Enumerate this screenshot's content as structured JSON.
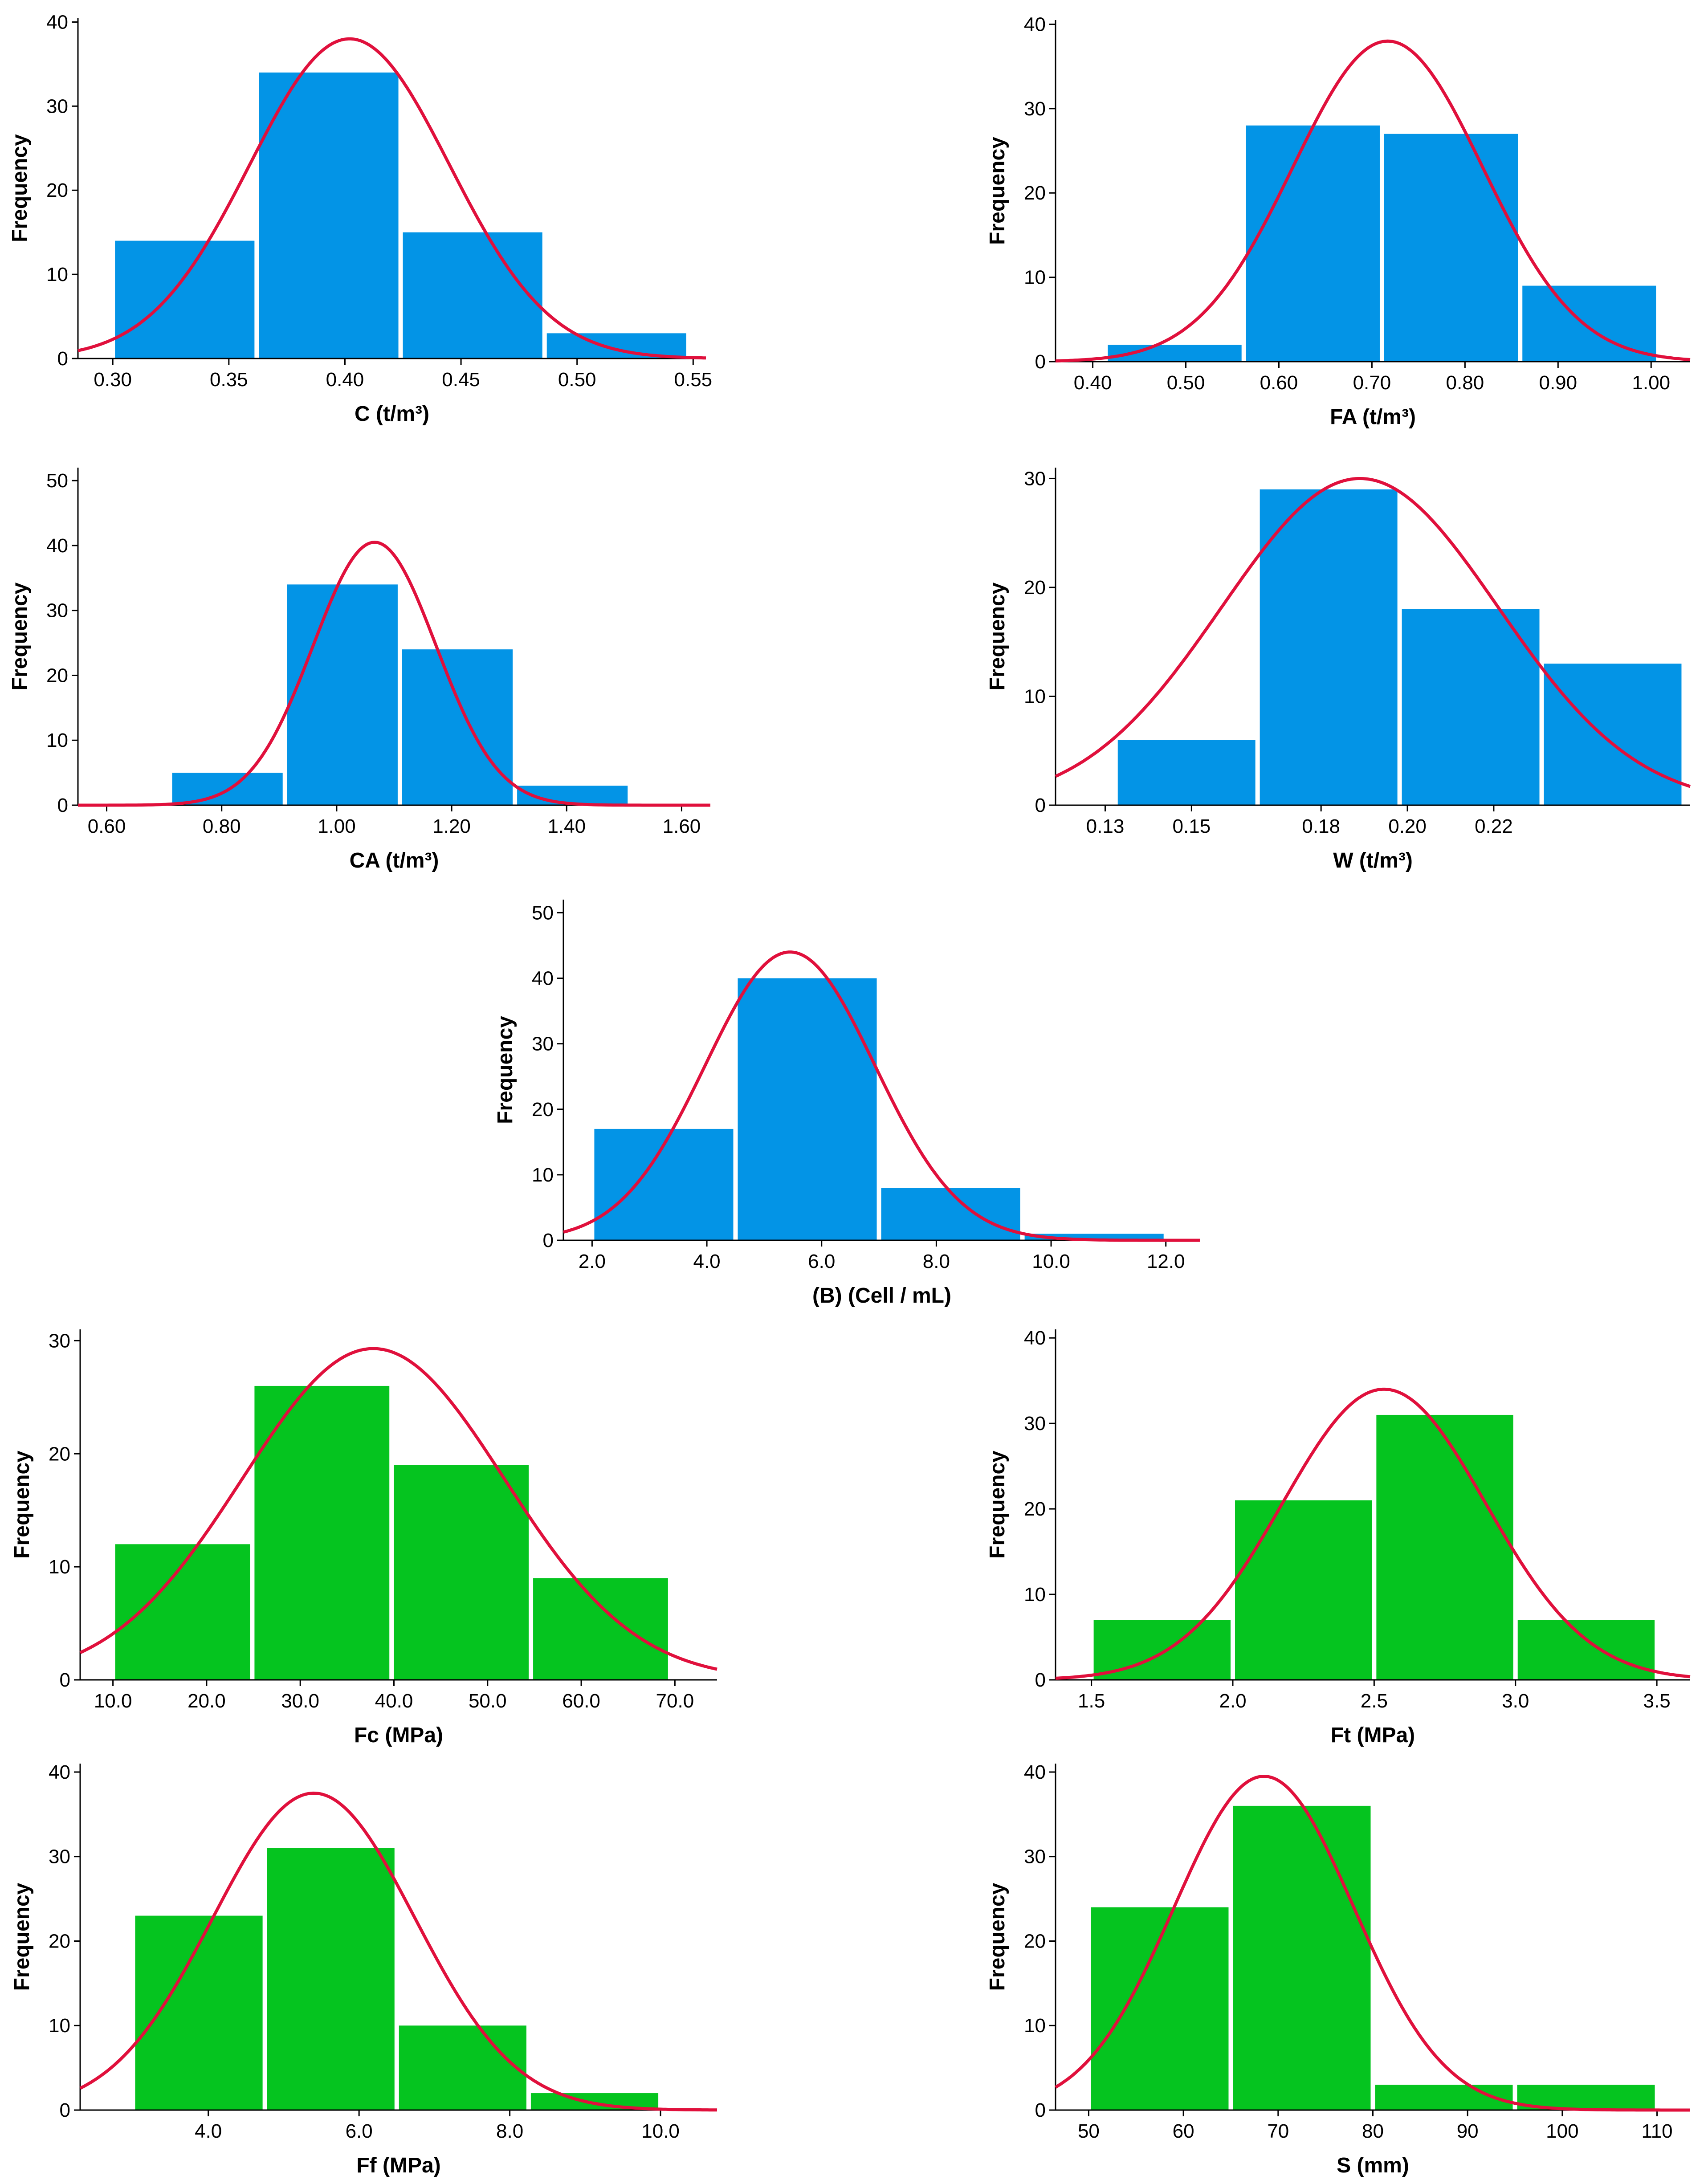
{
  "colors": {
    "blue_bar": "#0394E6",
    "green_bar": "#05C41F",
    "curve": "#E0103C",
    "axis": "#000000"
  },
  "chart_data": [
    {
      "id": "C",
      "type": "bar",
      "title": "",
      "xlabel": "C (t/m³)",
      "ylabel": "Frequency",
      "xlim": [
        0.285,
        0.5555
      ],
      "ylim": [
        0,
        40.5
      ],
      "xticks": [
        "0.30",
        "0.35",
        "0.40",
        "0.45",
        "0.50",
        "0.55"
      ],
      "xtick_values": [
        0.3,
        0.35,
        0.4,
        0.45,
        0.5,
        0.55
      ],
      "yticks": [
        0,
        10,
        20,
        30,
        40
      ],
      "bins": [
        [
          0.3,
          0.362
        ],
        [
          0.362,
          0.424
        ],
        [
          0.424,
          0.486
        ],
        [
          0.486,
          0.548
        ]
      ],
      "values": [
        14,
        34,
        15,
        3
      ],
      "normal_curve": {
        "mean": 0.402,
        "sd": 0.043,
        "peak": 38
      },
      "grid": false,
      "legend": "none"
    },
    {
      "id": "FA",
      "type": "bar",
      "title": "",
      "xlabel": "FA (t/m³)",
      "ylabel": "Frequency",
      "xlim": [
        0.36,
        1.042
      ],
      "ylim": [
        0,
        40.5
      ],
      "xticks": [
        "0.40",
        "0.50",
        "0.60",
        "0.70",
        "0.80",
        "0.90",
        "1.00"
      ],
      "xtick_values": [
        0.4,
        0.5,
        0.6,
        0.7,
        0.8,
        0.9,
        1.0
      ],
      "yticks": [
        0,
        10,
        20,
        30,
        40
      ],
      "bins": [
        [
          0.4138,
          0.5623
        ],
        [
          0.5623,
          0.7108
        ],
        [
          0.7108,
          0.8593
        ],
        [
          0.8593,
          1.0077
        ]
      ],
      "values": [
        2,
        28,
        27,
        9
      ],
      "normal_curve": {
        "mean": 0.717,
        "sd": 0.102,
        "peak": 38
      },
      "grid": false,
      "legend": "none"
    },
    {
      "id": "CA",
      "type": "bar",
      "title": "",
      "xlabel": "CA (t/m³)",
      "ylabel": "Frequency",
      "xlim": [
        0.55,
        1.65
      ],
      "ylim": [
        0,
        52
      ],
      "xticks": [
        "0.60",
        "0.80",
        "1.00",
        "1.20",
        "1.40",
        "1.60"
      ],
      "xtick_values": [
        0.6,
        0.8,
        1.0,
        1.2,
        1.4,
        1.6
      ],
      "yticks": [
        0,
        10,
        20,
        30,
        40,
        50
      ],
      "bins": [
        [
          0.71,
          0.91
        ],
        [
          0.91,
          1.11
        ],
        [
          1.11,
          1.31
        ],
        [
          1.31,
          1.51
        ]
      ],
      "values": [
        5,
        34,
        24,
        3
      ],
      "normal_curve": {
        "mean": 1.066,
        "sd": 0.107,
        "peak": 40.5
      },
      "grid": false,
      "legend": "none"
    },
    {
      "id": "W",
      "type": "bar",
      "title": "",
      "xlabel": "W (t/m³)",
      "ylabel": "Frequency",
      "xlim": [
        0.1185,
        0.2655
      ],
      "ylim": [
        0,
        31
      ],
      "xticks": [
        "0.13",
        "0.15",
        "0.18",
        "0.20",
        "0.22"
      ],
      "xtick_values": [
        0.13,
        0.15,
        0.18,
        0.2,
        0.22
      ],
      "yticks": [
        0,
        10,
        20,
        30
      ],
      "bins": [
        [
          0.1324,
          0.1653
        ],
        [
          0.1653,
          0.1982
        ],
        [
          0.1982,
          0.2311
        ],
        [
          0.2311,
          0.264
        ]
      ],
      "values": [
        6,
        29,
        18,
        13
      ],
      "normal_curve": {
        "mean": 0.189,
        "sd": 0.032,
        "peak": 30
      },
      "grid": false,
      "legend": "none"
    },
    {
      "id": "B",
      "type": "bar",
      "title": "",
      "xlabel": "(B) (Cell / mL)",
      "ylabel": "Frequency",
      "xlim": [
        1.5,
        12.6
      ],
      "ylim": [
        0,
        52
      ],
      "xticks": [
        "2.0",
        "4.0",
        "6.0",
        "8.0",
        "10.0",
        "12.0"
      ],
      "xtick_values": [
        2.0,
        4.0,
        6.0,
        8.0,
        10.0,
        12.0
      ],
      "yticks": [
        0,
        10,
        20,
        30,
        40,
        50
      ],
      "bins": [
        [
          2.0,
          4.5
        ],
        [
          4.5,
          7.0
        ],
        [
          7.0,
          9.5
        ],
        [
          9.5,
          12.0
        ]
      ],
      "values": [
        17,
        40,
        8,
        1
      ],
      "normal_curve": {
        "mean": 5.45,
        "sd": 1.48,
        "peak": 44
      },
      "grid": false,
      "legend": "none"
    },
    {
      "id": "Fc",
      "type": "bar",
      "title": "",
      "xlabel": "Fc (MPa)",
      "ylabel": "Frequency",
      "xlim": [
        6.5,
        74.5
      ],
      "ylim": [
        0,
        31
      ],
      "xticks": [
        "10.0",
        "20.0",
        "30.0",
        "40.0",
        "50.0",
        "60.0",
        "70.0"
      ],
      "xtick_values": [
        10,
        20,
        30,
        40,
        50,
        60,
        70
      ],
      "yticks": [
        0,
        10,
        20,
        30
      ],
      "bins": [
        [
          10.0,
          24.875
        ],
        [
          24.875,
          39.75
        ],
        [
          39.75,
          54.625
        ],
        [
          54.625,
          69.5
        ]
      ],
      "values": [
        12,
        26,
        19,
        9
      ],
      "normal_curve": {
        "mean": 37.8,
        "sd": 14.0,
        "peak": 29.3
      },
      "grid": false,
      "legend": "none"
    },
    {
      "id": "Ft",
      "type": "bar",
      "title": "",
      "xlabel": "Ft (MPa)",
      "ylabel": "Frequency",
      "xlim": [
        1.373,
        3.618
      ],
      "ylim": [
        0,
        41
      ],
      "xticks": [
        "1.5",
        "2.0",
        "2.5",
        "3.0",
        "3.5"
      ],
      "xtick_values": [
        1.5,
        2.0,
        2.5,
        3.0,
        3.5
      ],
      "yticks": [
        0,
        10,
        20,
        30,
        40
      ],
      "bins": [
        [
          1.5,
          2.0
        ],
        [
          2.0,
          2.5
        ],
        [
          2.5,
          3.0
        ],
        [
          3.0,
          3.5
        ]
      ],
      "values": [
        7,
        21,
        31,
        7
      ],
      "normal_curve": {
        "mean": 2.535,
        "sd": 0.36,
        "peak": 34
      },
      "grid": false,
      "legend": "none"
    },
    {
      "id": "Ff",
      "type": "bar",
      "title": "",
      "xlabel": "Ff (MPa)",
      "ylabel": "Frequency",
      "xlim": [
        2.3,
        10.75
      ],
      "ylim": [
        0,
        41
      ],
      "xticks": [
        "4.0",
        "6.0",
        "8.0",
        "10.0"
      ],
      "xtick_values": [
        4.0,
        6.0,
        8.0,
        10.0
      ],
      "yticks": [
        0,
        10,
        20,
        30,
        40
      ],
      "bins": [
        [
          3.0,
          4.75
        ],
        [
          4.75,
          6.5
        ],
        [
          6.5,
          8.25
        ],
        [
          8.25,
          10.0
        ]
      ],
      "values": [
        23,
        31,
        10,
        2
      ],
      "normal_curve": {
        "mean": 5.4,
        "sd": 1.34,
        "peak": 37.5
      },
      "grid": false,
      "legend": "none"
    },
    {
      "id": "S",
      "type": "bar",
      "title": "",
      "xlabel": "S (mm)",
      "ylabel": "Frequency",
      "xlim": [
        46.5,
        113.5
      ],
      "ylim": [
        0,
        41
      ],
      "xticks": [
        "50",
        "60",
        "70",
        "80",
        "90",
        "100",
        "110"
      ],
      "xtick_values": [
        50,
        60,
        70,
        80,
        90,
        100,
        110
      ],
      "yticks": [
        0,
        10,
        20,
        30,
        40
      ],
      "bins": [
        [
          50.0,
          65.0
        ],
        [
          65.0,
          80.0
        ],
        [
          80.0,
          95.0
        ],
        [
          95.0,
          110.0
        ]
      ],
      "values": [
        24,
        36,
        3,
        3
      ],
      "normal_curve": {
        "mean": 68.5,
        "sd": 9.5,
        "peak": 39.5
      },
      "grid": false,
      "legend": "none"
    }
  ]
}
